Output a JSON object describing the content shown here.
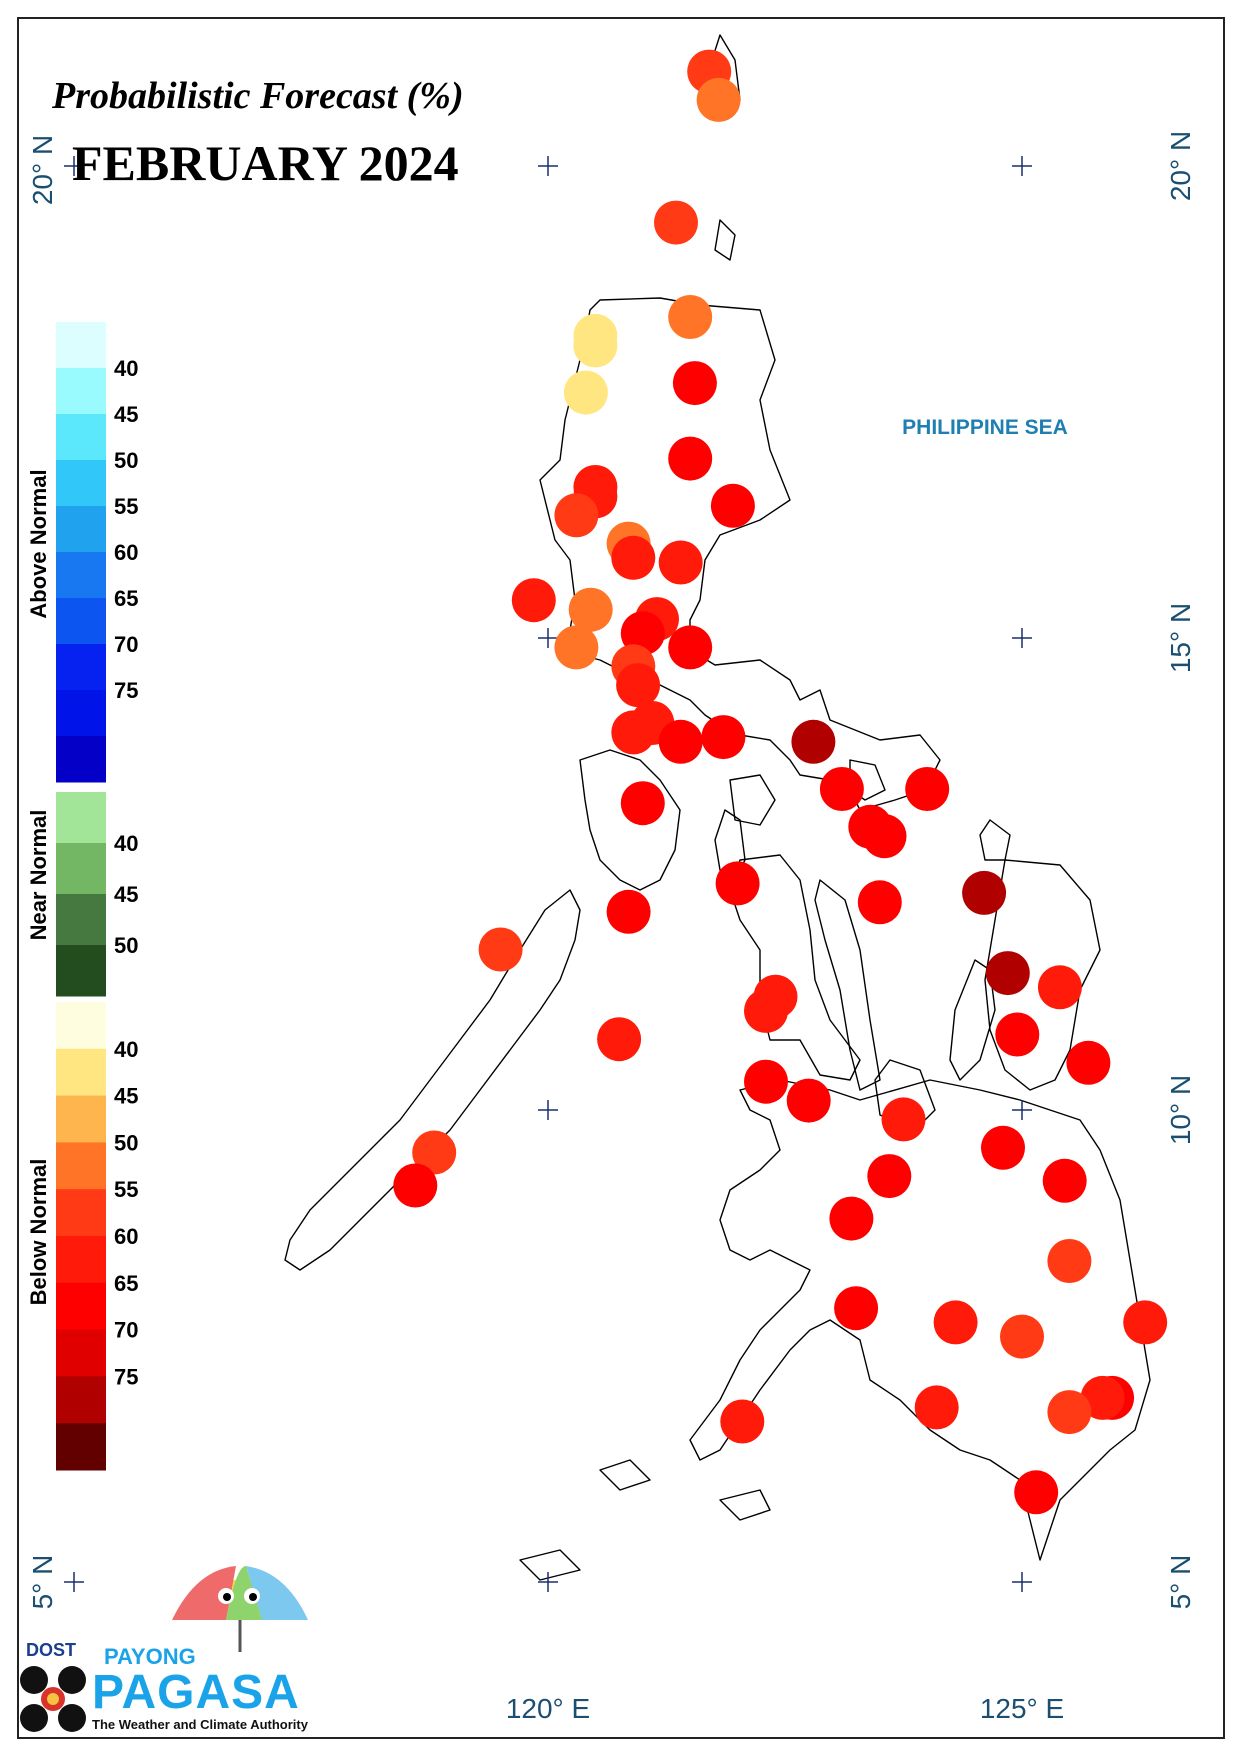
{
  "title": "Probabilistic Forecast (%)",
  "period": "FEBRUARY 2024",
  "sea_label": "PHILIPPINE SEA",
  "lat_labels": [
    "20° N",
    "15° N",
    "10° N",
    "5° N"
  ],
  "lon_labels": [
    "120° E",
    "125° E"
  ],
  "legend": {
    "above": {
      "label": "Above Normal",
      "ticks": [
        "40",
        "45",
        "50",
        "55",
        "60",
        "65",
        "70",
        "75"
      ],
      "colors": [
        "#dcfeff",
        "#9afbff",
        "#5be8fd",
        "#31c7f9",
        "#20a2ef",
        "#1878f2",
        "#0c55f0",
        "#0622f0",
        "#0013e8",
        "#0400c8"
      ]
    },
    "near": {
      "label": "Near Normal",
      "ticks": [
        "40",
        "45",
        "50"
      ],
      "colors": [
        "#a3e598",
        "#73b765",
        "#46793f",
        "#244d1f"
      ]
    },
    "below": {
      "label": "Below Normal",
      "ticks": [
        "40",
        "45",
        "50",
        "55",
        "60",
        "65",
        "70",
        "75"
      ],
      "colors": [
        "#fffde0",
        "#ffe680",
        "#ffb54d",
        "#ff7426",
        "#ff3a14",
        "#ff1a0a",
        "#ff0000",
        "#e00000",
        "#b00000",
        "#620000"
      ]
    }
  },
  "logo": {
    "org": "DOST",
    "brand_top": "PAYONG",
    "brand": "PAGASA",
    "tagline": "The Weather and Climate Authority"
  },
  "stations": [
    {
      "lat": 21.0,
      "lon": 121.7,
      "v": 55
    },
    {
      "lat": 20.7,
      "lon": 121.8,
      "v": 50
    },
    {
      "lat": 19.4,
      "lon": 121.35,
      "v": 55
    },
    {
      "lat": 18.4,
      "lon": 121.5,
      "v": 50
    },
    {
      "lat": 18.2,
      "lon": 120.5,
      "v": 42
    },
    {
      "lat": 18.1,
      "lon": 120.5,
      "v": 40
    },
    {
      "lat": 17.6,
      "lon": 120.4,
      "v": 42
    },
    {
      "lat": 17.7,
      "lon": 121.55,
      "v": 65
    },
    {
      "lat": 16.9,
      "lon": 121.5,
      "v": 65
    },
    {
      "lat": 16.4,
      "lon": 121.95,
      "v": 65
    },
    {
      "lat": 16.6,
      "lon": 120.5,
      "v": 63
    },
    {
      "lat": 16.5,
      "lon": 120.5,
      "v": 60
    },
    {
      "lat": 16.3,
      "lon": 120.3,
      "v": 55
    },
    {
      "lat": 16.0,
      "lon": 120.85,
      "v": 50
    },
    {
      "lat": 15.8,
      "lon": 121.4,
      "v": 60
    },
    {
      "lat": 15.85,
      "lon": 120.9,
      "v": 62
    },
    {
      "lat": 15.4,
      "lon": 119.85,
      "v": 62
    },
    {
      "lat": 15.3,
      "lon": 120.45,
      "v": 50
    },
    {
      "lat": 14.9,
      "lon": 120.3,
      "v": 50
    },
    {
      "lat": 15.2,
      "lon": 121.15,
      "v": 60
    },
    {
      "lat": 15.05,
      "lon": 121.0,
      "v": 65
    },
    {
      "lat": 14.9,
      "lon": 121.5,
      "v": 65
    },
    {
      "lat": 14.7,
      "lon": 120.9,
      "v": 55
    },
    {
      "lat": 14.5,
      "lon": 120.95,
      "v": 60
    },
    {
      "lat": 14.1,
      "lon": 121.1,
      "v": 60
    },
    {
      "lat": 14.0,
      "lon": 120.9,
      "v": 62
    },
    {
      "lat": 13.9,
      "lon": 121.4,
      "v": 65
    },
    {
      "lat": 13.95,
      "lon": 121.85,
      "v": 65
    },
    {
      "lat": 13.9,
      "lon": 122.8,
      "v": 75
    },
    {
      "lat": 13.4,
      "lon": 123.1,
      "v": 65
    },
    {
      "lat": 13.4,
      "lon": 124.0,
      "v": 65
    },
    {
      "lat": 13.25,
      "lon": 121.0,
      "v": 65
    },
    {
      "lat": 13.0,
      "lon": 123.4,
      "v": 65
    },
    {
      "lat": 12.9,
      "lon": 123.55,
      "v": 65
    },
    {
      "lat": 12.3,
      "lon": 124.6,
      "v": 75
    },
    {
      "lat": 12.4,
      "lon": 122.0,
      "v": 65
    },
    {
      "lat": 12.2,
      "lon": 123.5,
      "v": 65
    },
    {
      "lat": 12.1,
      "lon": 120.85,
      "v": 65
    },
    {
      "lat": 11.7,
      "lon": 119.5,
      "v": 55
    },
    {
      "lat": 11.45,
      "lon": 124.85,
      "v": 75
    },
    {
      "lat": 11.3,
      "lon": 125.4,
      "v": 62
    },
    {
      "lat": 11.2,
      "lon": 122.4,
      "v": 62
    },
    {
      "lat": 11.05,
      "lon": 122.3,
      "v": 62
    },
    {
      "lat": 10.8,
      "lon": 124.95,
      "v": 65
    },
    {
      "lat": 10.5,
      "lon": 125.7,
      "v": 65
    },
    {
      "lat": 10.75,
      "lon": 120.75,
      "v": 62
    },
    {
      "lat": 10.3,
      "lon": 122.3,
      "v": 65
    },
    {
      "lat": 10.1,
      "lon": 122.75,
      "v": 65
    },
    {
      "lat": 9.9,
      "lon": 123.75,
      "v": 62
    },
    {
      "lat": 9.6,
      "lon": 124.8,
      "v": 65
    },
    {
      "lat": 9.25,
      "lon": 125.45,
      "v": 65
    },
    {
      "lat": 9.55,
      "lon": 118.8,
      "v": 55
    },
    {
      "lat": 9.2,
      "lon": 118.6,
      "v": 65
    },
    {
      "lat": 9.3,
      "lon": 123.6,
      "v": 65
    },
    {
      "lat": 8.85,
      "lon": 123.2,
      "v": 65
    },
    {
      "lat": 8.4,
      "lon": 125.5,
      "v": 55
    },
    {
      "lat": 7.9,
      "lon": 123.25,
      "v": 65
    },
    {
      "lat": 7.75,
      "lon": 124.3,
      "v": 60
    },
    {
      "lat": 7.6,
      "lon": 125.0,
      "v": 55
    },
    {
      "lat": 7.75,
      "lon": 126.3,
      "v": 62
    },
    {
      "lat": 6.95,
      "lon": 125.95,
      "v": 65
    },
    {
      "lat": 6.95,
      "lon": 125.85,
      "v": 62
    },
    {
      "lat": 6.8,
      "lon": 125.5,
      "v": 55
    },
    {
      "lat": 6.85,
      "lon": 124.1,
      "v": 62
    },
    {
      "lat": 6.7,
      "lon": 122.05,
      "v": 60
    },
    {
      "lat": 5.95,
      "lon": 125.15,
      "v": 65
    }
  ]
}
